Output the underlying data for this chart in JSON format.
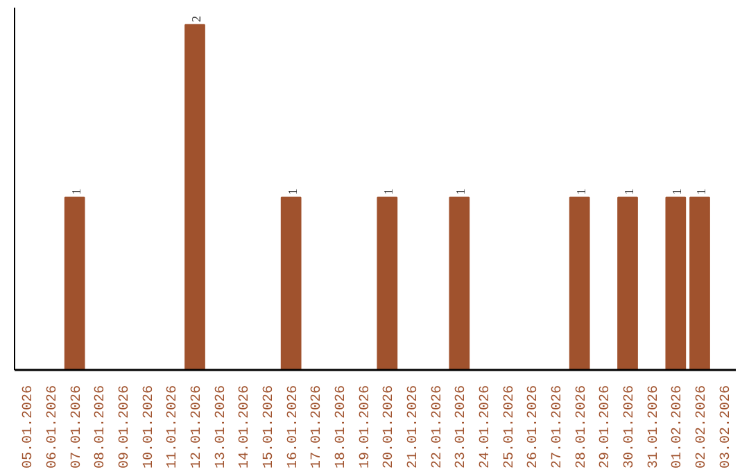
{
  "chart_data": {
    "type": "bar",
    "categories": [
      "05.01.2026",
      "06.01.2026",
      "07.01.2026",
      "08.01.2026",
      "09.01.2026",
      "10.01.2026",
      "11.01.2026",
      "12.01.2026",
      "13.01.2026",
      "14.01.2026",
      "15.01.2026",
      "16.01.2026",
      "17.01.2026",
      "18.01.2026",
      "19.01.2026",
      "20.01.2026",
      "21.01.2026",
      "22.01.2026",
      "23.01.2026",
      "24.01.2026",
      "25.01.2026",
      "26.01.2026",
      "27.01.2026",
      "28.01.2026",
      "29.01.2026",
      "30.01.2026",
      "31.01.2026",
      "01.02.2026",
      "02.02.2026",
      "03.02.2026"
    ],
    "values": [
      0,
      0,
      1,
      0,
      0,
      0,
      0,
      2,
      0,
      0,
      0,
      1,
      0,
      0,
      0,
      1,
      0,
      0,
      1,
      0,
      0,
      0,
      0,
      1,
      0,
      1,
      0,
      1,
      1,
      0
    ],
    "value_labels": [
      null,
      null,
      "1",
      null,
      null,
      null,
      null,
      "2",
      null,
      null,
      null,
      "1",
      null,
      null,
      null,
      "1",
      null,
      null,
      "1",
      null,
      null,
      null,
      null,
      "1",
      null,
      "1",
      null,
      "1",
      "1",
      null
    ],
    "color": "#a0522d",
    "ylim": [
      0,
      2.1
    ],
    "tick_labels": "x"
  }
}
